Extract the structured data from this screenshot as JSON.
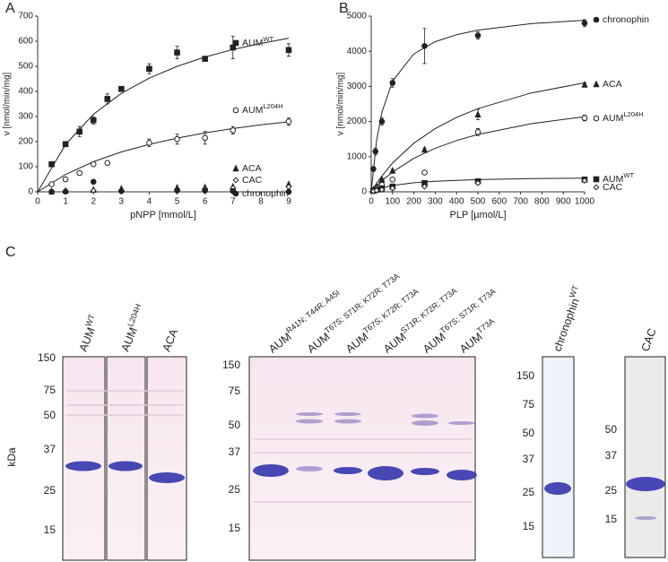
{
  "panel_labels": [
    "A",
    "B",
    "C"
  ],
  "chart_data": [
    {
      "type": "scatter",
      "color": "#222",
      "xlabel": "pNPP [mmol/L]",
      "ylabel": "v [nmol/min/mg]",
      "xlim": [
        0,
        9
      ],
      "xticks": [
        0,
        1,
        2,
        3,
        4,
        5,
        6,
        7,
        8,
        9
      ],
      "ylim": [
        0,
        700
      ],
      "yticks": [
        0,
        100,
        200,
        300,
        400,
        500,
        600,
        700
      ],
      "series": [
        {
          "name": "AUM",
          "superscript": "WT",
          "marker": "filled-square",
          "x": [
            0.5,
            1,
            1.5,
            2,
            2.5,
            3,
            4,
            5,
            6,
            7,
            9
          ],
          "values": [
            110,
            190,
            240,
            285,
            370,
            410,
            490,
            555,
            530,
            575,
            565
          ],
          "errors": [
            8,
            8,
            20,
            15,
            20,
            10,
            20,
            25,
            10,
            45,
            25
          ],
          "fit": {
            "x": [
              0,
              1,
              2,
              3,
              4,
              5,
              6,
              7,
              8,
              9
            ],
            "values": [
              0,
              189,
              309,
              392,
              453,
              500,
              537,
              567,
              591,
              612
            ]
          }
        },
        {
          "name": "AUM",
          "superscript": "L204H",
          "marker": "open-circle",
          "x": [
            0.5,
            1,
            1.5,
            2,
            2.5,
            4,
            5,
            6,
            7,
            9
          ],
          "values": [
            30,
            50,
            75,
            110,
            115,
            195,
            210,
            215,
            245,
            280
          ],
          "errors": [
            5,
            5,
            5,
            8,
            5,
            15,
            20,
            25,
            15,
            15
          ],
          "fit": {
            "x": [
              0,
              1,
              2,
              3,
              4,
              5,
              6,
              7,
              8,
              9
            ],
            "values": [
              0,
              69,
              120,
              159,
              189,
              214,
              235,
              252,
              267,
              279
            ]
          }
        },
        {
          "name": "ACA",
          "marker": "filled-triangle",
          "x": [
            0.5,
            1,
            2,
            3,
            5,
            6,
            7,
            9
          ],
          "values": [
            2,
            4,
            8,
            12,
            16,
            18,
            20,
            30
          ]
        },
        {
          "name": "CAC",
          "marker": "open-diamond",
          "x": [
            0.5,
            1,
            2,
            3,
            5,
            6,
            7,
            9
          ],
          "values": [
            1,
            3,
            5,
            6,
            10,
            12,
            15,
            20
          ]
        },
        {
          "name": "chronophin",
          "marker": "filled-circle",
          "x": [
            0.5,
            1,
            2,
            3,
            5,
            6,
            7,
            9
          ],
          "values": [
            0,
            1,
            40,
            3,
            5,
            5,
            3,
            0
          ]
        }
      ]
    },
    {
      "type": "scatter",
      "color": "#222",
      "xlabel": "PLP [µmol/L]",
      "ylabel": "v [nmol/min/mg]",
      "xlim": [
        0,
        1000
      ],
      "xticks": [
        0,
        100,
        200,
        300,
        400,
        500,
        600,
        700,
        800,
        900,
        1000
      ],
      "ylim": [
        0,
        5000
      ],
      "yticks": [
        0,
        1000,
        2000,
        3000,
        4000,
        5000
      ],
      "series": [
        {
          "name": "chronophin",
          "marker": "filled-circle",
          "x": [
            10,
            20,
            50,
            100,
            250,
            500,
            1000
          ],
          "values": [
            650,
            1150,
            2000,
            3100,
            4150,
            4450,
            4800
          ],
          "errors": [
            60,
            100,
            100,
            120,
            500,
            100,
            100
          ],
          "fit": {
            "x": [
              0,
              25,
              50,
              100,
              200,
              300,
              400,
              500,
              750,
              1000
            ],
            "values": [
              0,
              1444,
              2261,
              3152,
              3925,
              4274,
              4473,
              4602,
              4785,
              4882
            ]
          }
        },
        {
          "name": "ACA",
          "marker": "filled-triangle",
          "x": [
            10,
            25,
            50,
            100,
            250,
            500,
            1000
          ],
          "values": [
            60,
            150,
            350,
            600,
            1200,
            2200,
            3050
          ],
          "errors": [
            20,
            20,
            30,
            40,
            50,
            150,
            50
          ],
          "fit": {
            "x": [
              0,
              25,
              50,
              100,
              200,
              300,
              400,
              500,
              750,
              1000
            ],
            "values": [
              0,
              237,
              450,
              818,
              1385,
              1800,
              2118,
              2368,
              2813,
              3103
            ]
          }
        },
        {
          "name": "AUM",
          "superscript": "L204H",
          "marker": "open-circle",
          "x": [
            10,
            25,
            50,
            100,
            250,
            500,
            1000
          ],
          "values": [
            40,
            100,
            200,
            350,
            550,
            1700,
            2100
          ],
          "errors": [
            10,
            20,
            20,
            30,
            40,
            100,
            80
          ],
          "fit": {
            "x": [
              0,
              25,
              50,
              100,
              200,
              300,
              400,
              500,
              750,
              1000
            ],
            "values": [
              0,
              163,
              310,
              564,
              954,
              1240,
              1459,
              1632,
              1938,
              2138
            ]
          }
        },
        {
          "name": "AUM",
          "superscript": "WT",
          "marker": "filled-square",
          "x": [
            10,
            25,
            50,
            100,
            250,
            500,
            1000
          ],
          "values": [
            30,
            60,
            100,
            150,
            250,
            300,
            350
          ],
          "fit": {
            "x": [
              0,
              25,
              50,
              100,
              200,
              300,
              400,
              500,
              750,
              1000
            ],
            "values": [
              0,
              64,
              113,
              180,
              257,
              300,
              327,
              346,
              375,
              391
            ]
          }
        },
        {
          "name": "CAC",
          "marker": "open-diamond",
          "x": [
            10,
            25,
            50,
            100,
            250,
            500,
            1000
          ],
          "values": [
            20,
            40,
            60,
            100,
            150,
            250,
            320
          ]
        }
      ]
    }
  ],
  "gels": {
    "ylabel": "kDa",
    "panels": [
      {
        "markers": [
          150,
          75,
          50,
          37,
          25,
          15
        ],
        "lanes": [
          {
            "name": "AUM",
            "superscript": "WT"
          },
          {
            "name": "AUM",
            "superscript": "L204H"
          },
          {
            "name": "ACA"
          }
        ]
      },
      {
        "markers": [
          150,
          75,
          50,
          37,
          25,
          15
        ],
        "lanes": [
          {
            "name": "AUM",
            "superscript": "R41N; T44R; A45I"
          },
          {
            "name": "AUM",
            "superscript": "T67S; S71R; K72R; T73A"
          },
          {
            "name": "AUM",
            "superscript": "T67S; K72R; T73A"
          },
          {
            "name": "AUM",
            "superscript": "S71R; K72R; T73A"
          },
          {
            "name": "AUM",
            "superscript": "T67S; S71R; T73A"
          },
          {
            "name": "AUM",
            "superscript": "T73A"
          }
        ]
      },
      {
        "markers": [
          150,
          75,
          50,
          37,
          25,
          15
        ],
        "lanes": [
          {
            "name": "chronophin",
            "superscript": "WT"
          }
        ]
      },
      {
        "markers": [
          50,
          37,
          25,
          15
        ],
        "lanes": [
          {
            "name": "CAC"
          }
        ]
      }
    ]
  }
}
